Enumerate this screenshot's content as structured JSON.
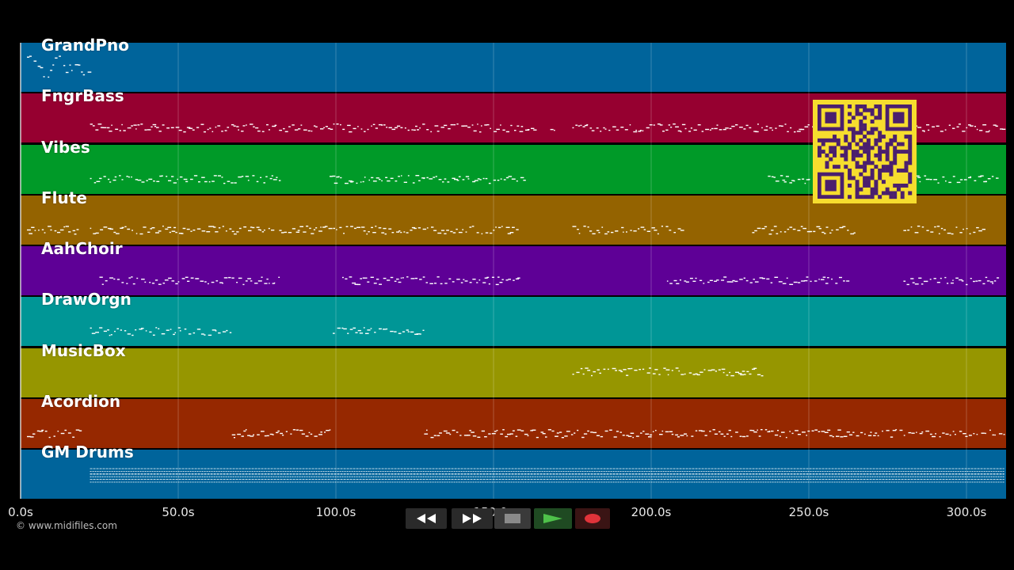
{
  "tracks": [
    {
      "id": "grandpno",
      "name": "GrandPno",
      "color": "#00649b",
      "segments": [
        [
          2,
          22
        ]
      ]
    },
    {
      "id": "fngrbass",
      "name": "FngrBass",
      "color": "#960030",
      "segments": [
        [
          22,
          163
        ],
        [
          168,
          170
        ],
        [
          175,
          313
        ]
      ]
    },
    {
      "id": "vibes",
      "name": "Vibes",
      "color": "#009a28",
      "segments": [
        [
          22,
          83
        ],
        [
          98,
          160
        ],
        [
          237,
          250
        ],
        [
          280,
          310
        ]
      ]
    },
    {
      "id": "flute",
      "name": "Flute",
      "color": "#946300",
      "segments": [
        [
          2,
          18
        ],
        [
          22,
          80
        ],
        [
          82,
          158
        ],
        [
          175,
          210
        ],
        [
          232,
          265
        ],
        [
          280,
          305
        ]
      ]
    },
    {
      "id": "aahchoir",
      "name": "AahChoir",
      "color": "#5e0096",
      "segments": [
        [
          25,
          82
        ],
        [
          102,
          158
        ],
        [
          205,
          262
        ],
        [
          280,
          310
        ]
      ]
    },
    {
      "id": "draworgn",
      "name": "DrawOrgn",
      "color": "#009696",
      "segments": [
        [
          22,
          67
        ],
        [
          99,
          128
        ]
      ]
    },
    {
      "id": "musicbox",
      "name": "MusicBox",
      "color": "#969600",
      "segments": [
        [
          175,
          235
        ]
      ]
    },
    {
      "id": "acordion",
      "name": "Acordion",
      "color": "#962800",
      "segments": [
        [
          2,
          19
        ],
        [
          67,
          98
        ],
        [
          128,
          313
        ]
      ]
    },
    {
      "id": "gmdrums",
      "name": "GM Drums",
      "color": "#00649b",
      "segments": [
        [
          22,
          312
        ]
      ]
    }
  ],
  "timeline": {
    "max_seconds": 313,
    "ticks": [
      {
        "value": 0,
        "label": "0.0s"
      },
      {
        "value": 50,
        "label": "50.0s"
      },
      {
        "value": 100,
        "label": "100.0s"
      },
      {
        "value": 150,
        "label": "150.0s"
      },
      {
        "value": 200,
        "label": "200.0s"
      },
      {
        "value": 250,
        "label": "250.0s"
      },
      {
        "value": 300,
        "label": "300.0s"
      }
    ],
    "playhead_seconds": 0
  },
  "controls": {
    "rewind": "rewind-icon",
    "fast_forward": "fast-forward-icon",
    "stop": "stop-icon",
    "play": "play-icon",
    "record": "record-icon"
  },
  "overlay": {
    "qr_code": "qr-code"
  },
  "copyright": "© www.midifiles.com"
}
